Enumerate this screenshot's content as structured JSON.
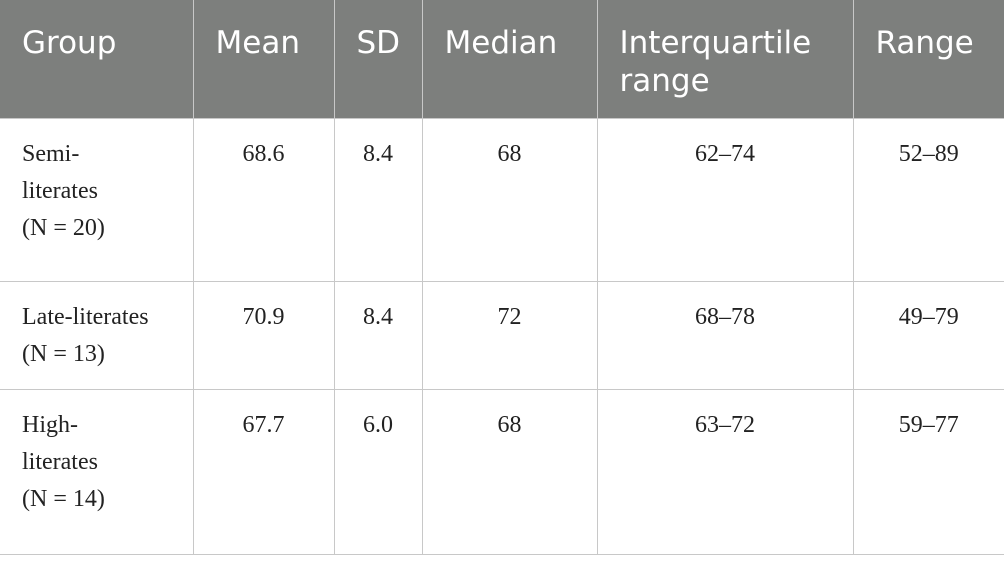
{
  "table": {
    "header": [
      "Group",
      "Mean",
      "SD",
      "Median",
      "Interquartile range",
      "Range"
    ],
    "rows": [
      {
        "group": "Semi-literates",
        "n": "(N = 20)",
        "cells": [
          "68.6",
          "8.4",
          "68",
          "62–74",
          "52–89"
        ]
      },
      {
        "group": "Late-literates",
        "n": "(N = 13)",
        "cells": [
          "70.9",
          "8.4",
          "72",
          "68–78",
          "49–79"
        ]
      },
      {
        "group": "High-literates",
        "n": "(N = 14)",
        "cells": [
          "67.7",
          "6.0",
          "68",
          "63–72",
          "59–77"
        ]
      }
    ]
  }
}
